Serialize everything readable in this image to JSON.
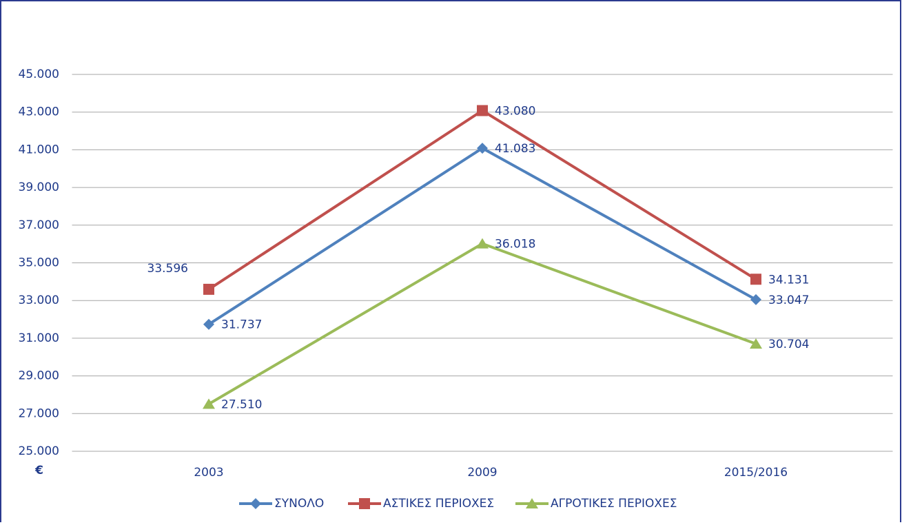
{
  "chart_data": {
    "type": "line",
    "y_label": "€",
    "categories": [
      "2003",
      "2009",
      "2015/2016"
    ],
    "series": [
      {
        "name": "ΣΥΝΟΛΟ",
        "color": "#4f81bd",
        "marker": "diamond",
        "values": [
          31737,
          41083,
          33047
        ],
        "value_labels": [
          "31.737",
          "41.083",
          "33.047"
        ]
      },
      {
        "name": "ΑΣΤΙΚΕΣ ΠΕΡΙΟΧΕΣ",
        "color": "#c0504d",
        "marker": "square",
        "values": [
          33596,
          43080,
          34131
        ],
        "value_labels": [
          "33.596",
          "43.080",
          "34.131"
        ]
      },
      {
        "name": "ΑΓΡΟΤΙΚΕΣ ΠΕΡΙΟΧΕΣ",
        "color": "#9bbb59",
        "marker": "triangle",
        "values": [
          27510,
          36018,
          30704
        ],
        "value_labels": [
          "27.510",
          "36.018",
          "30.704"
        ]
      }
    ],
    "ylim": [
      25000,
      45000
    ],
    "yticks": [
      {
        "value": 25000,
        "label": "25.000"
      },
      {
        "value": 27000,
        "label": "27.000"
      },
      {
        "value": 29000,
        "label": "29.000"
      },
      {
        "value": 31000,
        "label": "31.000"
      },
      {
        "value": 33000,
        "label": "33.000"
      },
      {
        "value": 35000,
        "label": "35.000"
      },
      {
        "value": 37000,
        "label": "37.000"
      },
      {
        "value": 39000,
        "label": "39.000"
      },
      {
        "value": 41000,
        "label": "41.000"
      },
      {
        "value": 43000,
        "label": "43.000"
      },
      {
        "value": 45000,
        "label": "45.000"
      }
    ],
    "grid": true,
    "legend": "bottom"
  }
}
